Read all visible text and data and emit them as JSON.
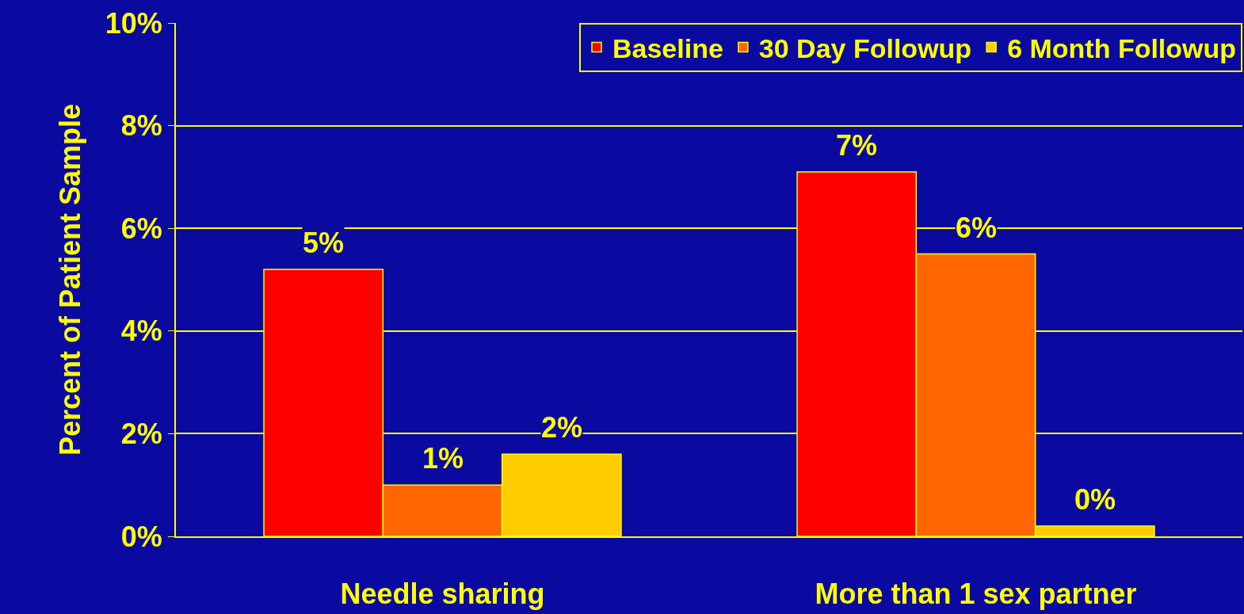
{
  "chart_data": {
    "type": "bar",
    "ylabel": "Percent of Patient Sample",
    "categories": [
      "Needle sharing",
      "More than 1 sex partner"
    ],
    "series": [
      {
        "name": "Baseline",
        "color": "#ff0000",
        "values": [
          5.2,
          7.1
        ],
        "value_labels": [
          "5%",
          "7%"
        ]
      },
      {
        "name": "30 Day Followup",
        "color": "#ff6600",
        "values": [
          1.0,
          5.5
        ],
        "value_labels": [
          "1%",
          "6%"
        ]
      },
      {
        "name": "6 Month Followup",
        "color": "#ffcc00",
        "values": [
          1.6,
          0.2
        ],
        "value_labels": [
          "2%",
          "0%"
        ]
      }
    ],
    "ylim": [
      0,
      10
    ],
    "yticks": [
      {
        "value": 0,
        "label": "0%"
      },
      {
        "value": 2,
        "label": "2%"
      },
      {
        "value": 4,
        "label": "4%"
      },
      {
        "value": 6,
        "label": "6%"
      },
      {
        "value": 8,
        "label": "8%"
      },
      {
        "value": 10,
        "label": "10%"
      }
    ],
    "grid": "y",
    "legend": "top right"
  }
}
